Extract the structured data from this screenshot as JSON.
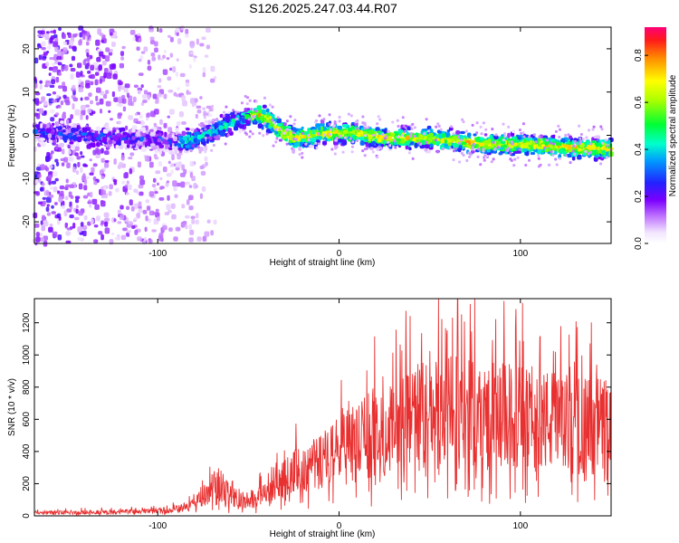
{
  "title": "S126.2025.247.03.44.R07",
  "chart_data": [
    {
      "type": "heatmap",
      "name": "spectrogram",
      "xlabel": "Height of straight line (km)",
      "ylabel": "Frequency (Hz)",
      "xlim": [
        -168,
        150
      ],
      "ylim": [
        -25,
        25
      ],
      "xticks": [
        -100,
        0,
        100
      ],
      "yticks": [
        -20,
        -10,
        0,
        10,
        20
      ],
      "xtick_labels": [
        "-100",
        "0",
        "100"
      ],
      "ytick_labels": [
        "-20",
        "-10",
        "0",
        "10",
        "20"
      ],
      "ridge": {
        "x": [
          -168,
          -140,
          -120,
          -100,
          -85,
          -70,
          -60,
          -50,
          -45,
          -40,
          -35,
          -30,
          -25,
          -20,
          -10,
          0,
          10,
          20,
          40,
          60,
          80,
          100,
          120,
          140,
          150
        ],
        "y": [
          1,
          0,
          -0.5,
          -1,
          -1.5,
          1,
          3,
          4.5,
          5,
          4,
          2,
          0.5,
          -0.5,
          -0.5,
          0.5,
          0.5,
          0.5,
          -0.5,
          -0.5,
          -1,
          -2,
          -2,
          -2.5,
          -3,
          -3
        ]
      }
    },
    {
      "type": "line",
      "name": "snr",
      "xlabel": "Height of straight line (km)",
      "ylabel": "SNR (10 * v/v)",
      "xlim": [
        -168,
        150
      ],
      "ylim": [
        0,
        1350
      ],
      "xticks": [
        -100,
        0,
        100
      ],
      "yticks": [
        0,
        200,
        400,
        600,
        800,
        1000,
        1200
      ],
      "xtick_labels": [
        "-100",
        "0",
        "100"
      ],
      "ytick_labels": [
        "0",
        "200",
        "400",
        "600",
        "800",
        "1000",
        "1200"
      ],
      "color": "#e83030",
      "envelope": {
        "x": [
          -168,
          -120,
          -100,
          -90,
          -80,
          -72,
          -68,
          -60,
          -50,
          -40,
          -30,
          -20,
          -10,
          0,
          10,
          20,
          30,
          40,
          50,
          60,
          70,
          80,
          90,
          100,
          110,
          120,
          130,
          140,
          150
        ],
        "y": [
          20,
          25,
          30,
          40,
          70,
          150,
          230,
          120,
          100,
          140,
          230,
          300,
          340,
          400,
          460,
          520,
          560,
          600,
          630,
          640,
          640,
          620,
          620,
          610,
          600,
          580,
          560,
          560,
          570
        ]
      },
      "spread": 0.55
    }
  ],
  "colorbar": {
    "label": "Normalized spectral amplitude",
    "range": [
      0,
      0.92
    ],
    "ticks": [
      0.0,
      0.2,
      0.4,
      0.6,
      0.8
    ],
    "tick_labels": [
      "0.0",
      "0.2",
      "0.4",
      "0.6",
      "0.8"
    ]
  }
}
